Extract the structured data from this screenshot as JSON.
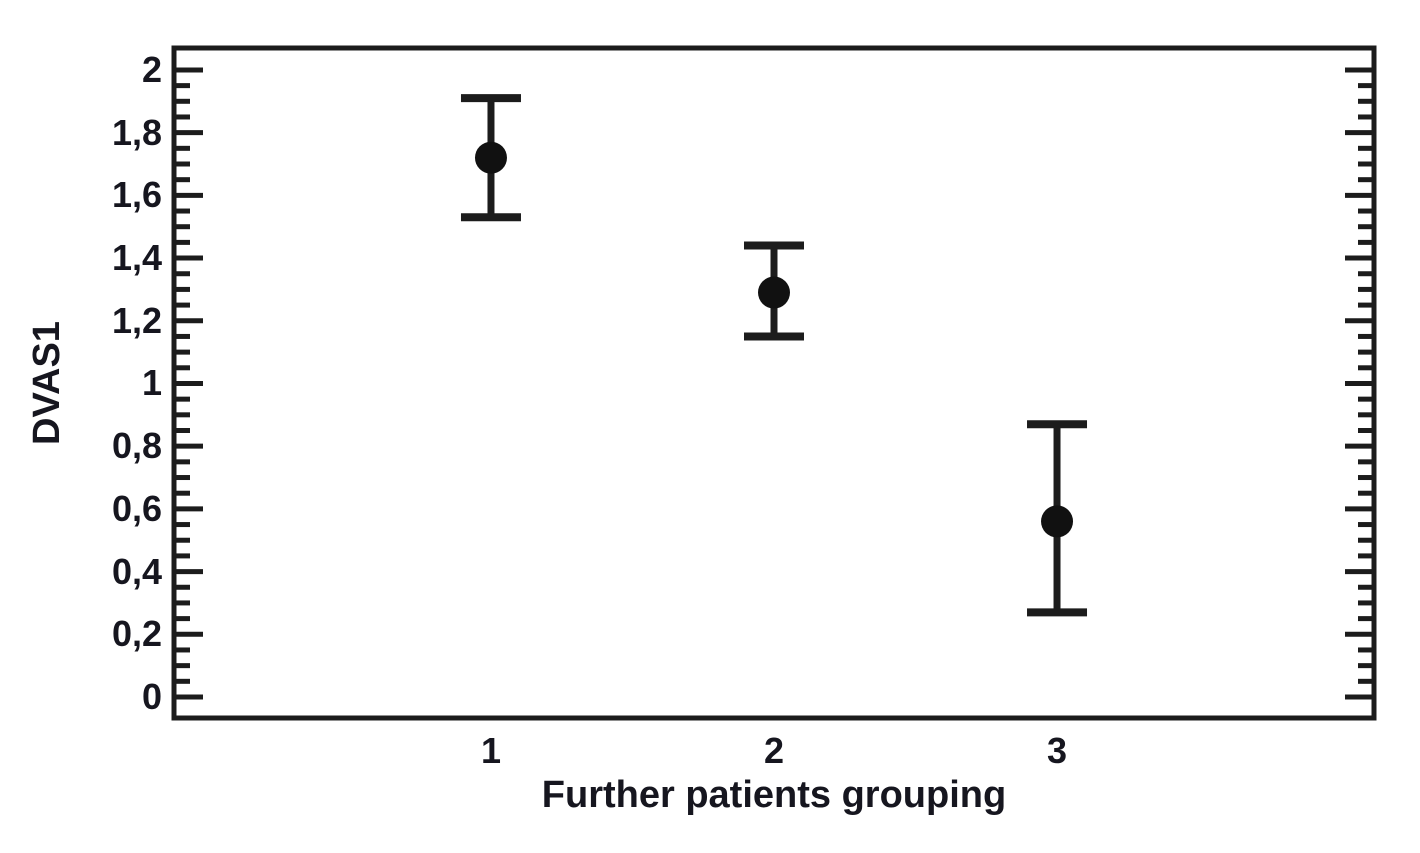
{
  "chart_data": {
    "type": "scatter",
    "subtype": "mean-with-error-bars",
    "title": "",
    "xlabel": "Further patients grouping",
    "ylabel": "DVAS1",
    "x": [
      1,
      2,
      3
    ],
    "x_tick_labels": [
      "1",
      "2",
      "3"
    ],
    "series": [
      {
        "name": "DVAS1",
        "means": [
          1.72,
          1.29,
          0.56
        ],
        "ci_lower": [
          1.53,
          1.15,
          0.27
        ],
        "ci_upper": [
          1.91,
          1.44,
          0.87
        ]
      }
    ],
    "xlim": [
      -0.12,
      4.12
    ],
    "ylim": [
      -0.067,
      2.07
    ],
    "y_ticks": [
      {
        "value": 0.0,
        "label": "0"
      },
      {
        "value": 0.2,
        "label": "0,2"
      },
      {
        "value": 0.4,
        "label": "0,4"
      },
      {
        "value": 0.6,
        "label": "0,6"
      },
      {
        "value": 0.8,
        "label": "0,8"
      },
      {
        "value": 1.0,
        "label": "1"
      },
      {
        "value": 1.2,
        "label": "1,2"
      },
      {
        "value": 1.4,
        "label": "1,4"
      },
      {
        "value": 1.6,
        "label": "1,6"
      },
      {
        "value": 1.8,
        "label": "1,8"
      },
      {
        "value": 2.0,
        "label": "2"
      }
    ],
    "y_minor_tick_step": 0.05,
    "y_minor_tick_range": [
      0,
      2
    ],
    "grid": false,
    "legend": "none",
    "marker": "filled-circle",
    "colors": {
      "line": "#1c1c1c",
      "marker": "#111111",
      "text": "#16161f",
      "background": "#ffffff"
    }
  }
}
